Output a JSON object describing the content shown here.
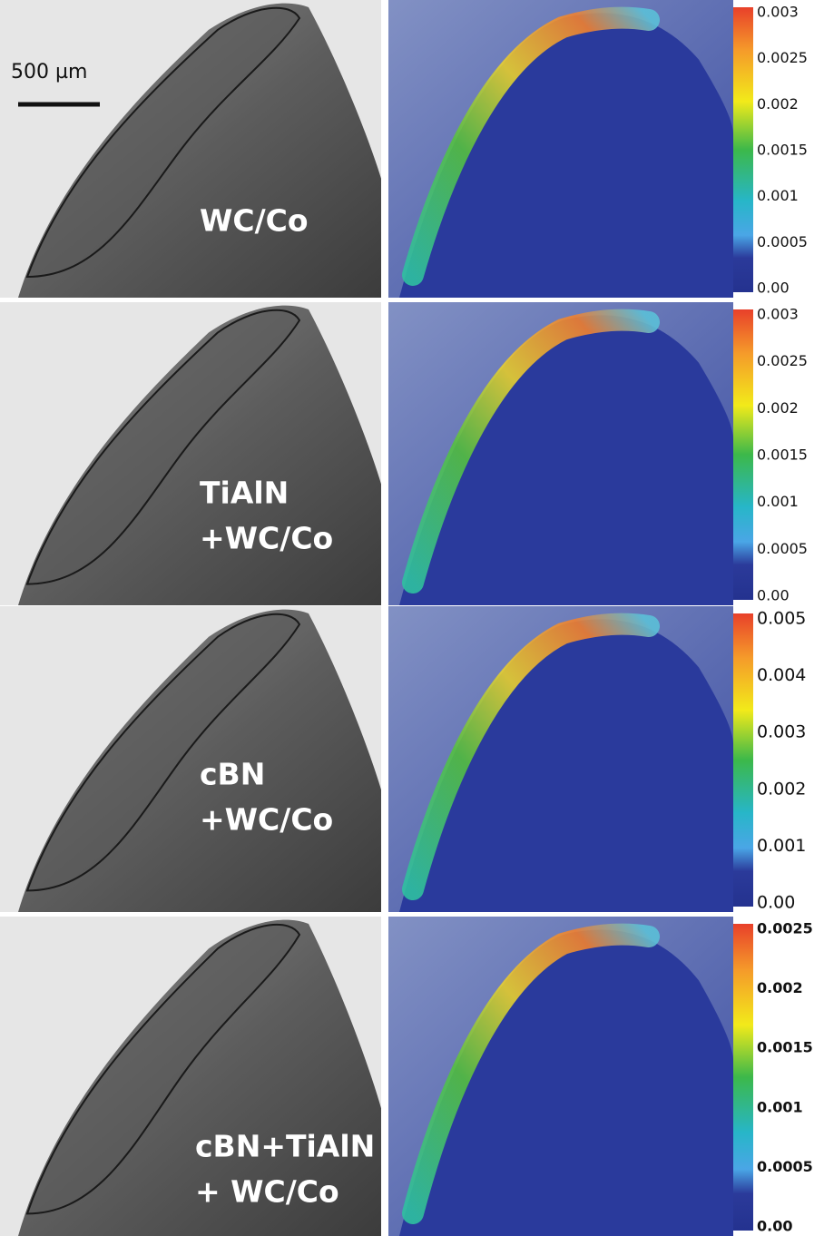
{
  "scale_bar": "500 µm",
  "panels": [
    {
      "label_lines": [
        "WC/Co"
      ],
      "colorbar_ticks": [
        "0.003",
        "0.0025",
        "0.002",
        "0.0015",
        "0.001",
        "0.0005",
        "0.00"
      ]
    },
    {
      "label_lines": [
        "TiAlN",
        "+WC/Co"
      ],
      "colorbar_ticks": [
        "0.003",
        "0.0025",
        "0.002",
        "0.0015",
        "0.001",
        "0.0005",
        "0.00"
      ]
    },
    {
      "label_lines": [
        "cBN",
        "+WC/Co"
      ],
      "colorbar_ticks": [
        "0.005",
        "0.004",
        "0.003",
        "0.002",
        "0.001",
        "0.00"
      ]
    },
    {
      "label_lines": [
        "cBN+TiAlN",
        "+ WC/Co"
      ],
      "colorbar_ticks": [
        "0.0025",
        "0.002",
        "0.0015",
        "0.001",
        "0.0005",
        "0.00"
      ]
    }
  ]
}
